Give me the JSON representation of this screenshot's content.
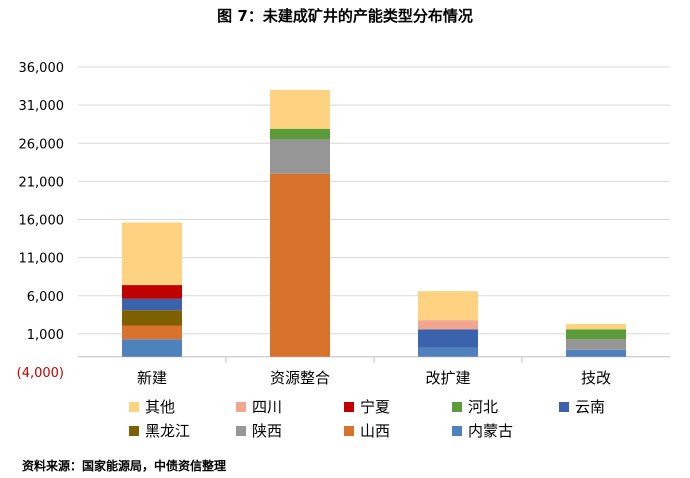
{
  "chart_data": {
    "type": "bar",
    "stacked": true,
    "title": "图 7：未建成矿井的产能类型分布情况",
    "categories": [
      "新建",
      "资源整合",
      "改扩建",
      "技改"
    ],
    "y_ticks": [
      "36,000",
      "31,000",
      "26,000",
      "21,000",
      "16,000",
      "11,000",
      "6,000",
      "1,000",
      "(4,000)"
    ],
    "ylim": [
      -4000,
      36000
    ],
    "y_gridlines": [
      1000,
      6000,
      11000,
      16000,
      21000,
      26000,
      31000,
      36000
    ],
    "baseline": -2000,
    "series": [
      {
        "name": "内蒙古",
        "color": "#4f81bd",
        "values": [
          2300,
          0,
          1200,
          900
        ]
      },
      {
        "name": "山西",
        "color": "#d9722b",
        "values": [
          1800,
          24000,
          0,
          0
        ]
      },
      {
        "name": "陕西",
        "color": "#969696",
        "values": [
          0,
          4500,
          0,
          1400
        ]
      },
      {
        "name": "黑龙江",
        "color": "#7f6000",
        "values": [
          2000,
          0,
          0,
          0
        ]
      },
      {
        "name": "云南",
        "color": "#3a62ad",
        "values": [
          1500,
          0,
          2400,
          0
        ]
      },
      {
        "name": "河北",
        "color": "#5b9b3a",
        "values": [
          0,
          1400,
          0,
          1300
        ]
      },
      {
        "name": "宁夏",
        "color": "#c00000",
        "values": [
          1800,
          0,
          0,
          0
        ]
      },
      {
        "name": "四川",
        "color": "#f4a58e",
        "values": [
          0,
          0,
          1200,
          0
        ]
      },
      {
        "name": "其他",
        "color": "#fdd281",
        "values": [
          8200,
          5100,
          3800,
          700
        ]
      }
    ],
    "legend_order": [
      "其他",
      "四川",
      "宁夏",
      "河北",
      "云南",
      "黑龙江",
      "陕西",
      "山西",
      "内蒙古"
    ]
  },
  "source": "资料来源：国家能源局，中债资信整理"
}
